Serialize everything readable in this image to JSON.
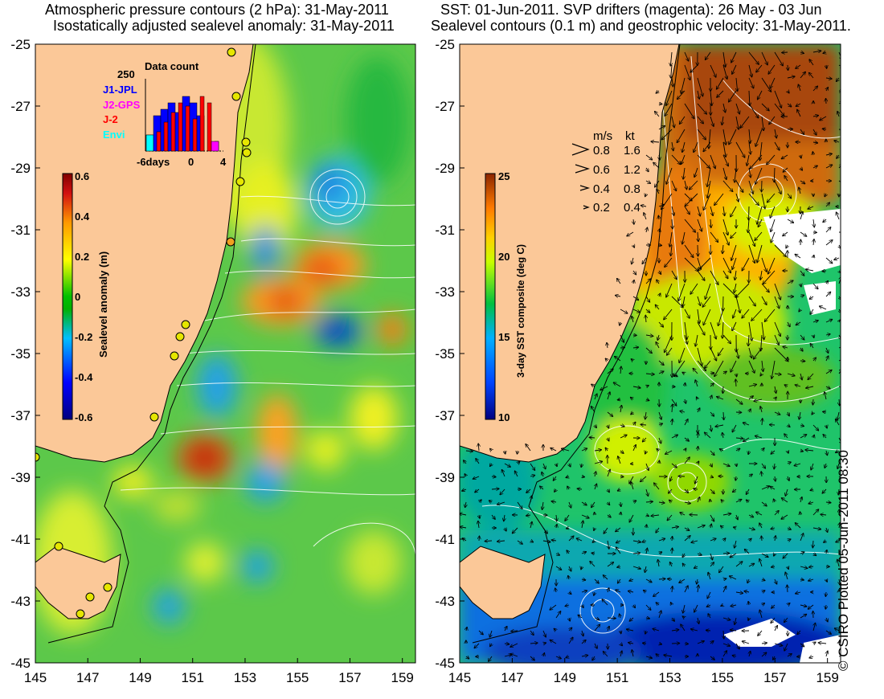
{
  "left_panel": {
    "title_line1": "Atmospheric pressure contours (2 hPa): 31-May-2011",
    "title_line2": "Isostatically adjusted sealevel anomaly: 31-May-2011",
    "y_ticks": [
      "-25",
      "-27",
      "-29",
      "-31",
      "-33",
      "-35",
      "-37",
      "-39",
      "-41",
      "-43",
      "-45"
    ],
    "x_ticks": [
      "145",
      "147",
      "149",
      "151",
      "153",
      "155",
      "157",
      "159"
    ],
    "colorbar": {
      "label": "Sealevel anomaly (m)",
      "ticks": [
        "0.6",
        "0.4",
        "0.2",
        "0",
        "-0.2",
        "-0.4",
        "-0.6"
      ]
    },
    "data_count": {
      "title": "Data count",
      "ymax": "250",
      "x_ticks": [
        "-6days",
        "0",
        "4"
      ],
      "legend": [
        {
          "label": "J1-JPL",
          "color": "#0000ff"
        },
        {
          "label": "J2-GPS",
          "color": "#ff00ff"
        },
        {
          "label": "J-2",
          "color": "#ff0000"
        },
        {
          "label": "Envi",
          "color": "#00ffff"
        }
      ],
      "bars": [
        {
          "day": -6,
          "blue": 0.25,
          "red": 0.0,
          "cyan": 0.25
        },
        {
          "day": -5,
          "blue": 0.55,
          "red": 0.3,
          "cyan": 0
        },
        {
          "day": -4,
          "blue": 0.65,
          "red": 0.45,
          "cyan": 0
        },
        {
          "day": -3,
          "blue": 0.75,
          "red": 0.6,
          "cyan": 0
        },
        {
          "day": -2,
          "blue": 0.6,
          "red": 0.75,
          "cyan": 0
        },
        {
          "day": -1,
          "blue": 0.85,
          "red": 0.7,
          "cyan": 0
        },
        {
          "day": 0,
          "blue": 0.75,
          "red": 0.5,
          "cyan": 0
        },
        {
          "day": 1,
          "blue": 0.55,
          "red": 0.85,
          "cyan": 0
        },
        {
          "day": 2,
          "blue": 0.0,
          "red": 0.75,
          "cyan": 0
        },
        {
          "day": 3,
          "blue": 0.0,
          "red": 0.15,
          "cyan": 0,
          "magenta": 0.15
        }
      ]
    }
  },
  "right_panel": {
    "title_line1": "SST: 01-Jun-2011. SVP drifters (magenta): 26 May - 03 Jun",
    "title_line2": "Sealevel contours (0.1 m) and geostrophic velocity: 31-May-2011.",
    "y_ticks": [
      "-25",
      "-27",
      "-29",
      "-31",
      "-33",
      "-35",
      "-37",
      "-39",
      "-41",
      "-43",
      "-45"
    ],
    "x_ticks": [
      "145",
      "147",
      "149",
      "151",
      "153",
      "155",
      "157",
      "159"
    ],
    "colorbar": {
      "label": "3-day SST composite (deg C)",
      "ticks": [
        "25",
        "20",
        "15",
        "10"
      ]
    },
    "velocity_legend": {
      "header_ms": "m/s",
      "header_kt": "kt",
      "rows": [
        {
          "ms": "0.8",
          "kt": "1.6"
        },
        {
          "ms": "0.6",
          "kt": "1.2"
        },
        {
          "ms": "0.4",
          "kt": "0.8"
        },
        {
          "ms": "0.2",
          "kt": "0.4"
        }
      ]
    }
  },
  "credit": "© CSIRO Plotted 05-Jun-2011 08:30",
  "colors": {
    "land": "#fbc898",
    "ssa_scale": [
      "#00007f",
      "#0000ff",
      "#00bfff",
      "#00c000",
      "#ffff00",
      "#ff9900",
      "#d21010",
      "#7f0000"
    ],
    "sst_scale": [
      "#000080",
      "#0044ff",
      "#00b0ff",
      "#00c040",
      "#c8ff00",
      "#ffd000",
      "#ff7a00",
      "#8b2500"
    ]
  }
}
